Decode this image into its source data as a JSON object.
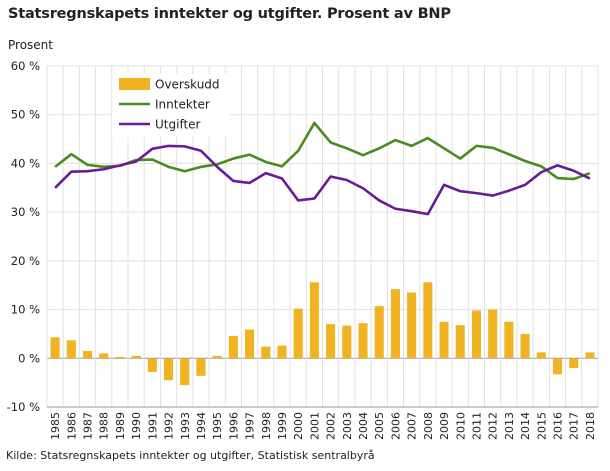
{
  "title": "Statsregnskapets inntekter og utgifter. Prosent av BNP",
  "source": "Kilde: Statsregnskapets inntekter og utgifter, Statistisk sentralbyrå",
  "chart_data": {
    "type": "bar+line",
    "title": "Statsregnskapets inntekter og utgifter. Prosent av BNP",
    "ylabel": "Prosent",
    "ylim": [
      -10,
      60
    ],
    "yticks": [
      -10,
      0,
      10,
      20,
      30,
      40,
      50,
      60
    ],
    "ytick_labels": [
      "-10 %",
      "0 %",
      "10 %",
      "20 %",
      "30 %",
      "40 %",
      "50 %",
      "60 %"
    ],
    "grid": true,
    "legend_position": "top-left",
    "categories": [
      "1985",
      "1986",
      "1987",
      "1988",
      "1989",
      "1990",
      "1991",
      "1992",
      "1993",
      "1994",
      "1995",
      "1996",
      "1997",
      "1998",
      "1999",
      "2000",
      "2001",
      "2002",
      "2003",
      "2004",
      "2005",
      "2006",
      "2007",
      "2008",
      "2009",
      "2010",
      "2011",
      "2012",
      "2013",
      "2014",
      "2015",
      "2016",
      "2017",
      "2018"
    ],
    "series": [
      {
        "name": "Overskudd",
        "kind": "bar",
        "color": "#f0b323",
        "values": [
          4.3,
          3.7,
          1.5,
          1.0,
          0.3,
          0.5,
          -2.8,
          -4.5,
          -5.5,
          -3.6,
          0.5,
          4.6,
          5.9,
          2.4,
          2.6,
          10.2,
          15.6,
          7.0,
          6.7,
          7.2,
          10.7,
          14.2,
          13.5,
          15.6,
          7.5,
          6.8,
          9.8,
          10.0,
          7.5,
          5.0,
          1.2,
          -3.3,
          -2.0,
          1.2
        ]
      },
      {
        "name": "Inntekter",
        "kind": "line",
        "color": "#4a8c1c",
        "values": [
          39.3,
          41.9,
          39.7,
          39.3,
          39.5,
          40.7,
          40.8,
          39.3,
          38.4,
          39.3,
          39.8,
          41.0,
          41.8,
          40.3,
          39.4,
          42.6,
          48.3,
          44.3,
          43.1,
          41.7,
          43.1,
          44.8,
          43.6,
          45.2,
          43.1,
          41.0,
          43.6,
          43.2,
          41.9,
          40.5,
          39.4,
          37.0,
          36.8,
          38.0
        ]
      },
      {
        "name": "Utgifter",
        "kind": "line",
        "color": "#6a1b9a",
        "values": [
          35.0,
          38.3,
          38.4,
          38.8,
          39.6,
          40.4,
          43.0,
          43.6,
          43.5,
          42.6,
          39.3,
          36.4,
          36.0,
          38.0,
          36.9,
          32.4,
          32.8,
          37.3,
          36.6,
          34.9,
          32.4,
          30.7,
          30.2,
          29.6,
          35.6,
          34.3,
          33.9,
          33.4,
          34.4,
          35.6,
          38.2,
          39.6,
          38.5,
          36.9
        ]
      }
    ]
  }
}
